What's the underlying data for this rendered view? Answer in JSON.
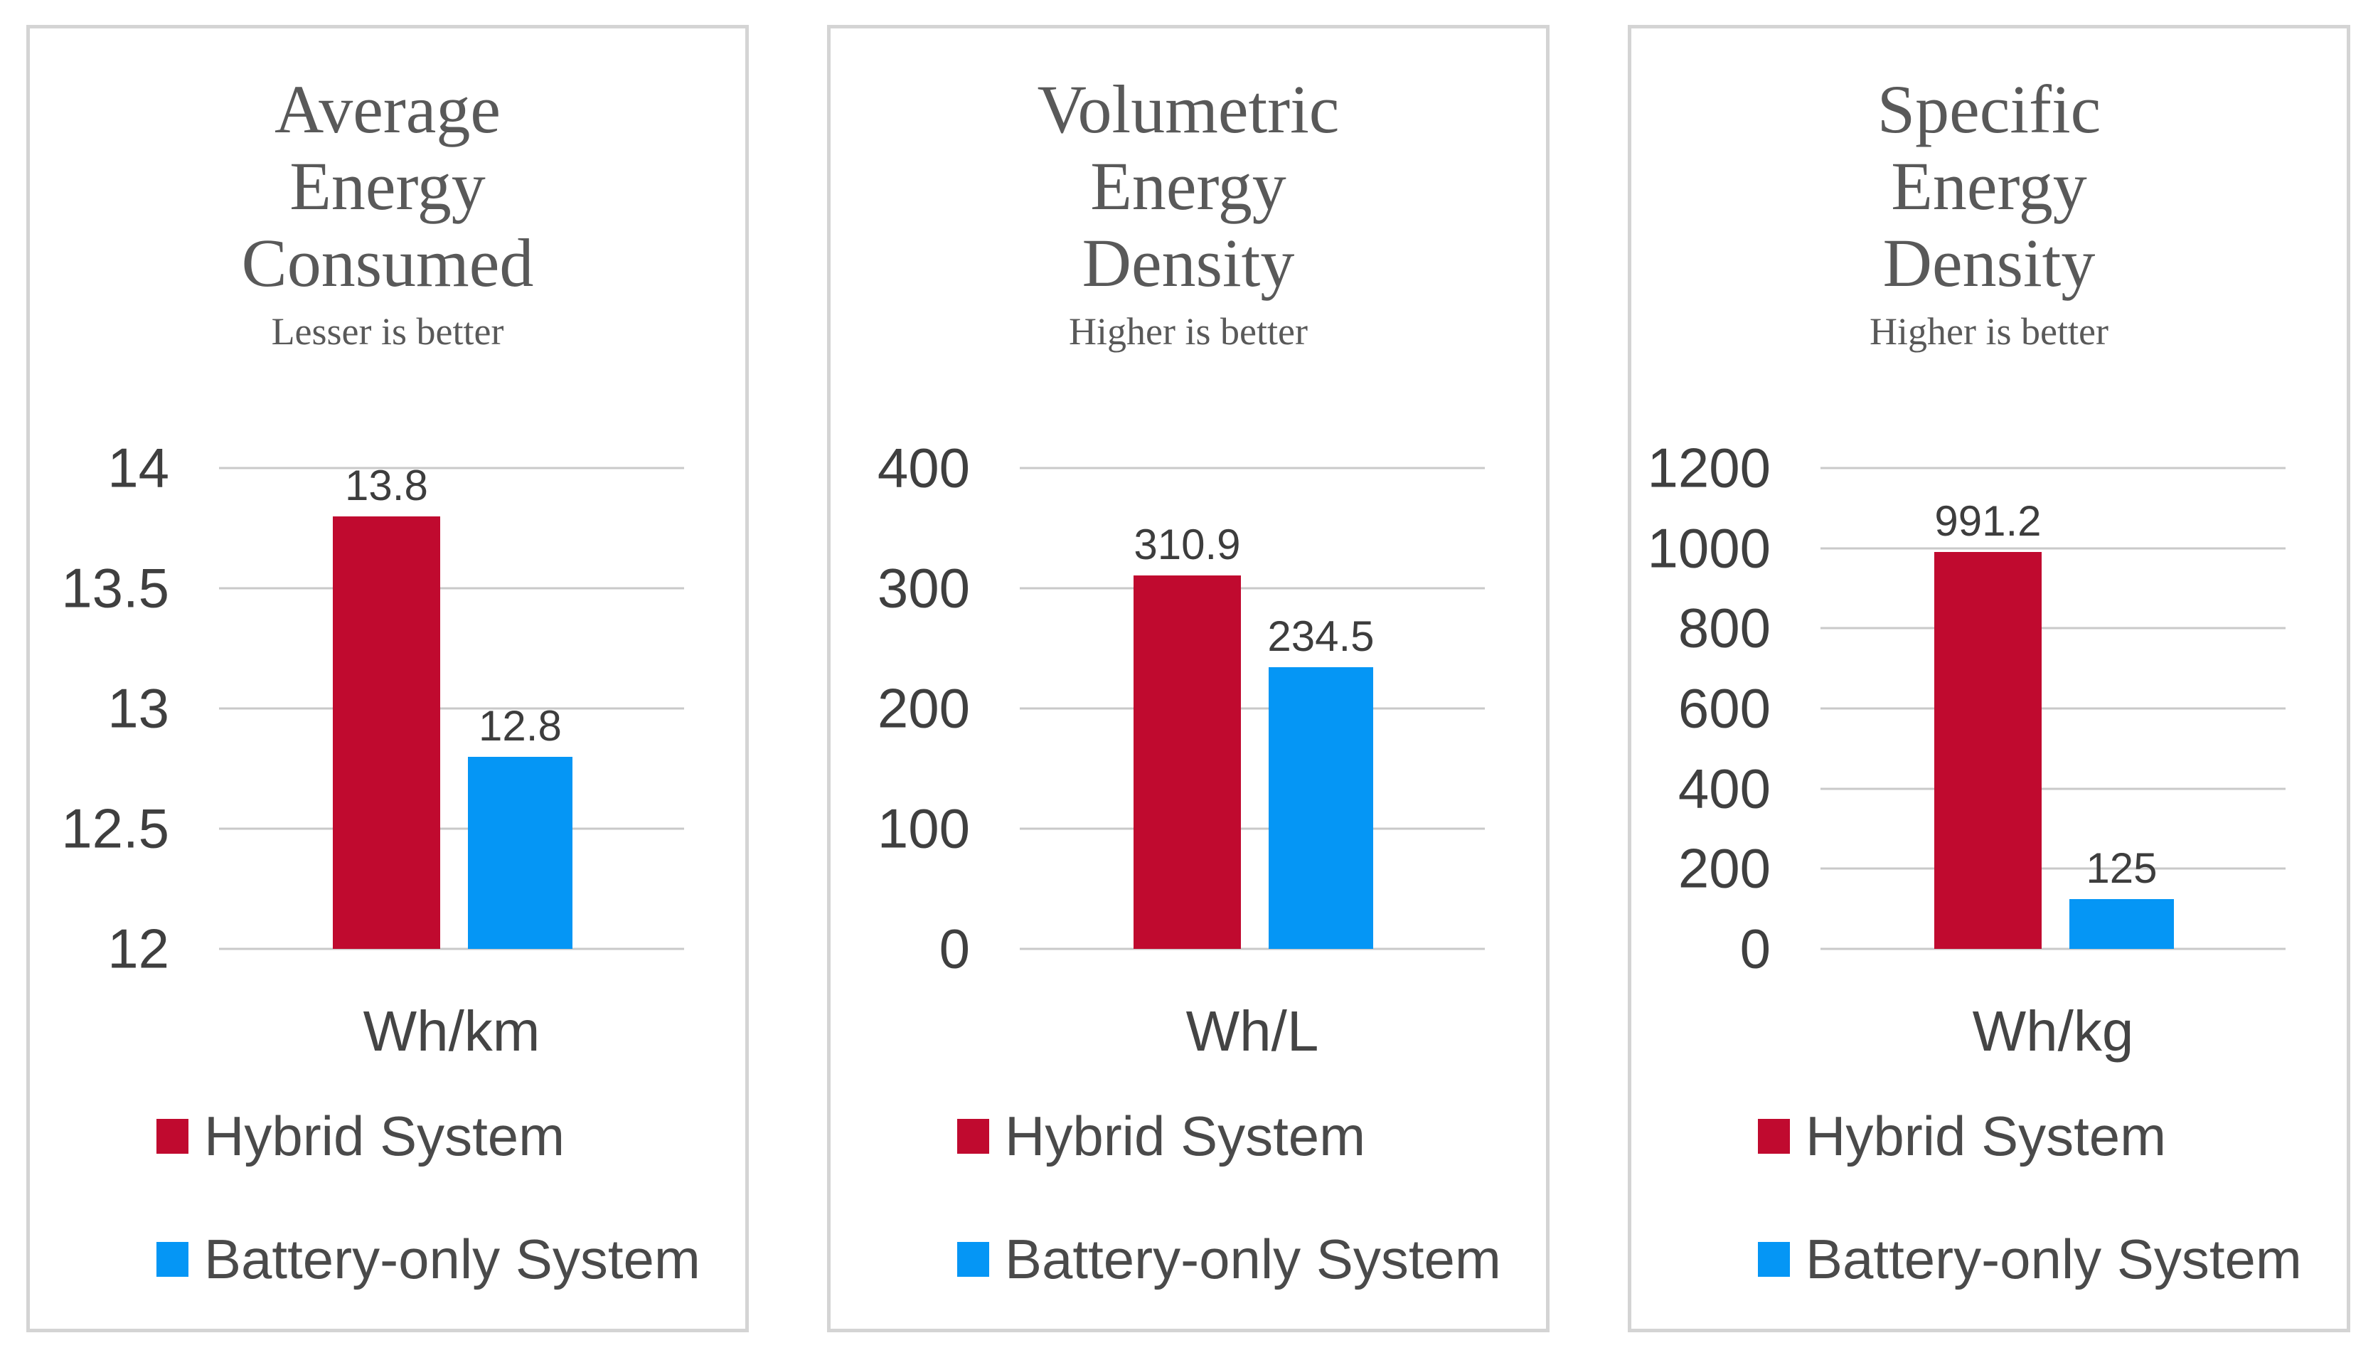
{
  "colors": {
    "hybrid": "#c00a2f",
    "battery": "#0596f5",
    "gridline": "#c9c9c9",
    "panel_border": "#d4d4d4",
    "title_text": "#595959",
    "number_text": "#3f3f3f"
  },
  "legend": {
    "items": [
      {
        "label": "Hybrid System",
        "color": "#c00a2f"
      },
      {
        "label": "Battery-only System",
        "color": "#0596f5"
      }
    ]
  },
  "chart_data": [
    {
      "type": "bar",
      "title": "Average Energy Consumed",
      "title_lines": [
        "Average",
        "Energy",
        "Consumed"
      ],
      "subtitle": "Lesser is better",
      "xlabel": "Wh/km",
      "categories": [
        "Hybrid System",
        "Battery-only System"
      ],
      "values": [
        13.8,
        12.8
      ],
      "value_labels": [
        "13.8",
        "12.8"
      ],
      "ylim": [
        12,
        14
      ],
      "yticks": [
        "14",
        "13.5",
        "13",
        "12.5",
        "12"
      ],
      "grid": true,
      "legend_position": "bottom-left"
    },
    {
      "type": "bar",
      "title": "Volumetric Energy Density",
      "title_lines": [
        "Volumetric",
        "Energy",
        "Density"
      ],
      "subtitle": "Higher is better",
      "xlabel": "Wh/L",
      "categories": [
        "Hybrid System",
        "Battery-only System"
      ],
      "values": [
        310.9,
        234.5
      ],
      "value_labels": [
        "310.9",
        "234.5"
      ],
      "ylim": [
        0,
        400
      ],
      "yticks": [
        "400",
        "300",
        "200",
        "100",
        "0"
      ],
      "grid": true,
      "legend_position": "bottom-left"
    },
    {
      "type": "bar",
      "title": "Specific Energy Density",
      "title_lines": [
        "Specific",
        "Energy",
        "Density"
      ],
      "subtitle": "Higher is better",
      "xlabel": "Wh/kg",
      "categories": [
        "Hybrid System",
        "Battery-only System"
      ],
      "values": [
        991.2,
        125
      ],
      "value_labels": [
        "991.2",
        "125"
      ],
      "ylim": [
        0,
        1200
      ],
      "yticks": [
        "1200",
        "1000",
        "800",
        "600",
        "400",
        "200",
        "0"
      ],
      "grid": true,
      "legend_position": "bottom-left"
    }
  ]
}
